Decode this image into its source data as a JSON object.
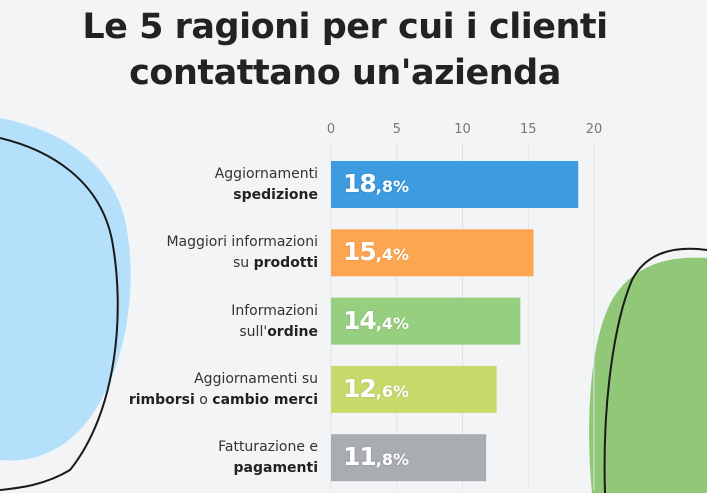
{
  "title": {
    "line1": "Le 5 ragioni per cui i clienti",
    "line2": "contattano un'azienda"
  },
  "chart_data": {
    "type": "bar",
    "orientation": "horizontal",
    "title": "Le 5 ragioni per cui i clienti contattano un'azienda",
    "xlim": [
      0,
      20
    ],
    "ticks": [
      "0",
      "5",
      "10",
      "15",
      "20"
    ],
    "tick_values": [
      0,
      5,
      10,
      15,
      20
    ],
    "grid": true,
    "categories": [
      {
        "lines": [
          [
            {
              "t": "Aggiornamenti",
              "b": false
            }
          ],
          [
            {
              "t": "spedizione",
              "b": true
            }
          ]
        ]
      },
      {
        "lines": [
          [
            {
              "t": "Maggiori informazioni",
              "b": false
            }
          ],
          [
            {
              "t": "su ",
              "b": false
            },
            {
              "t": "prodotti",
              "b": true
            }
          ]
        ]
      },
      {
        "lines": [
          [
            {
              "t": "Informazioni",
              "b": false
            }
          ],
          [
            {
              "t": "sull'",
              "b": false
            },
            {
              "t": "ordine",
              "b": true
            }
          ]
        ]
      },
      {
        "lines": [
          [
            {
              "t": "Aggiornamenti su",
              "b": false
            }
          ],
          [
            {
              "t": "rimborsi",
              "b": true
            },
            {
              "t": " o ",
              "b": false
            },
            {
              "t": "cambio merci",
              "b": true
            }
          ]
        ]
      },
      {
        "lines": [
          [
            {
              "t": "Fatturazione e",
              "b": false
            }
          ],
          [
            {
              "t": "pagamenti",
              "b": true
            }
          ]
        ]
      }
    ],
    "values": [
      18.8,
      15.4,
      14.4,
      12.6,
      11.8
    ],
    "value_labels": [
      {
        "int": "18",
        "dec": ",8%"
      },
      {
        "int": "15",
        "dec": ",4%"
      },
      {
        "int": "14",
        "dec": ",4%"
      },
      {
        "int": "12",
        "dec": ",6%"
      },
      {
        "int": "11",
        "dec": ",8%"
      }
    ],
    "colors": [
      "#3d9be0",
      "#fca652",
      "#97cf80",
      "#c9d96c",
      "#a9adb2"
    ]
  },
  "decor": {
    "blob_left": "#b5e0fb",
    "blob_right": "#90c878",
    "outline": "#1a1a1a"
  }
}
